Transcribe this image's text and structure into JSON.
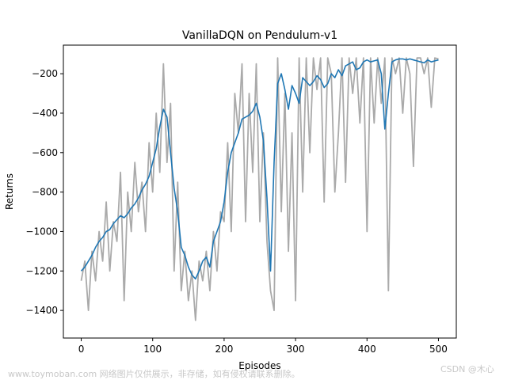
{
  "chart_data": {
    "type": "line",
    "title": "VanillaDQN on Pendulum-v1",
    "xlabel": "Episodes",
    "ylabel": "Returns",
    "xlim": [
      -25,
      525
    ],
    "ylim": [
      -1540,
      -55
    ],
    "xticks": [
      0,
      100,
      200,
      300,
      400,
      500
    ],
    "yticks": [
      -1400,
      -1200,
      -1000,
      -800,
      -600,
      -400,
      -200
    ],
    "grid": false,
    "legend": "none",
    "series": [
      {
        "color": "#aaaaaa",
        "x": [
          0,
          5,
          10,
          15,
          20,
          25,
          30,
          35,
          40,
          45,
          50,
          55,
          60,
          65,
          70,
          75,
          80,
          85,
          90,
          95,
          100,
          105,
          110,
          115,
          120,
          125,
          130,
          135,
          140,
          145,
          150,
          155,
          160,
          165,
          170,
          175,
          180,
          185,
          190,
          195,
          200,
          205,
          210,
          215,
          220,
          225,
          230,
          235,
          240,
          245,
          250,
          255,
          260,
          265,
          270,
          275,
          280,
          285,
          290,
          295,
          300,
          305,
          310,
          315,
          320,
          325,
          330,
          335,
          340,
          345,
          350,
          355,
          360,
          365,
          370,
          375,
          380,
          385,
          390,
          395,
          400,
          405,
          410,
          415,
          420,
          425,
          430,
          435,
          440,
          445,
          450,
          455,
          460,
          465,
          470,
          475,
          480,
          485,
          490,
          495,
          500
        ],
        "y": [
          -1250,
          -1150,
          -1400,
          -1100,
          -1250,
          -1000,
          -1150,
          -850,
          -1200,
          -950,
          -1050,
          -700,
          -1350,
          -800,
          -1000,
          -650,
          -900,
          -750,
          -1000,
          -550,
          -800,
          -400,
          -700,
          -150,
          -650,
          -350,
          -1200,
          -750,
          -1300,
          -1100,
          -1350,
          -1200,
          -1450,
          -1150,
          -1250,
          -1100,
          -1300,
          -1000,
          -1200,
          -900,
          -950,
          -550,
          -1000,
          -300,
          -500,
          -150,
          -950,
          -300,
          -700,
          -150,
          -950,
          -500,
          -1050,
          -1300,
          -1400,
          -120,
          -900,
          -300,
          -1100,
          -500,
          -1350,
          -120,
          -800,
          -120,
          -600,
          -120,
          -280,
          -120,
          -850,
          -120,
          -200,
          -800,
          -500,
          -120,
          -750,
          -120,
          -300,
          -120,
          -450,
          -120,
          -1000,
          -120,
          -450,
          -120,
          -350,
          -120,
          -1300,
          -120,
          -200,
          -120,
          -400,
          -120,
          -200,
          -670,
          -120,
          -120,
          -200,
          -120,
          -370,
          -120,
          -125
        ]
      },
      {
        "color": "#1f77b4",
        "x": [
          0,
          5,
          10,
          15,
          20,
          25,
          30,
          35,
          40,
          45,
          50,
          55,
          60,
          65,
          70,
          75,
          80,
          85,
          90,
          95,
          100,
          105,
          110,
          115,
          120,
          125,
          130,
          135,
          140,
          145,
          150,
          155,
          160,
          165,
          170,
          175,
          180,
          185,
          190,
          195,
          200,
          205,
          210,
          215,
          220,
          225,
          230,
          235,
          240,
          245,
          250,
          255,
          260,
          265,
          270,
          275,
          280,
          285,
          290,
          295,
          300,
          305,
          310,
          315,
          320,
          325,
          330,
          335,
          340,
          345,
          350,
          355,
          360,
          365,
          370,
          375,
          380,
          385,
          390,
          395,
          400,
          405,
          410,
          415,
          420,
          425,
          430,
          435,
          440,
          445,
          450,
          455,
          460,
          465,
          470,
          475,
          480,
          485,
          490,
          495,
          500
        ],
        "y": [
          -1200,
          -1180,
          -1150,
          -1120,
          -1080,
          -1050,
          -1030,
          -1000,
          -990,
          -960,
          -940,
          -920,
          -930,
          -910,
          -880,
          -860,
          -830,
          -790,
          -760,
          -720,
          -650,
          -580,
          -470,
          -380,
          -420,
          -600,
          -780,
          -900,
          -1080,
          -1120,
          -1180,
          -1220,
          -1240,
          -1200,
          -1150,
          -1130,
          -1180,
          -1050,
          -1000,
          -950,
          -850,
          -700,
          -600,
          -550,
          -500,
          -430,
          -420,
          -410,
          -390,
          -350,
          -420,
          -540,
          -830,
          -1200,
          -650,
          -250,
          -200,
          -280,
          -380,
          -260,
          -300,
          -350,
          -220,
          -240,
          -260,
          -240,
          -210,
          -230,
          -270,
          -250,
          -200,
          -220,
          -180,
          -210,
          -160,
          -150,
          -140,
          -180,
          -170,
          -140,
          -130,
          -140,
          -135,
          -130,
          -200,
          -480,
          -300,
          -140,
          -130,
          -125,
          -125,
          -130,
          -125,
          -130,
          -135,
          -140,
          -145,
          -130,
          -140,
          -135,
          -130
        ]
      }
    ]
  },
  "watermarks": {
    "left": "www.toymoban.com 网络图片仅供展示，非存储，如有侵权请联系删除。",
    "right": "CSDN @木心"
  }
}
